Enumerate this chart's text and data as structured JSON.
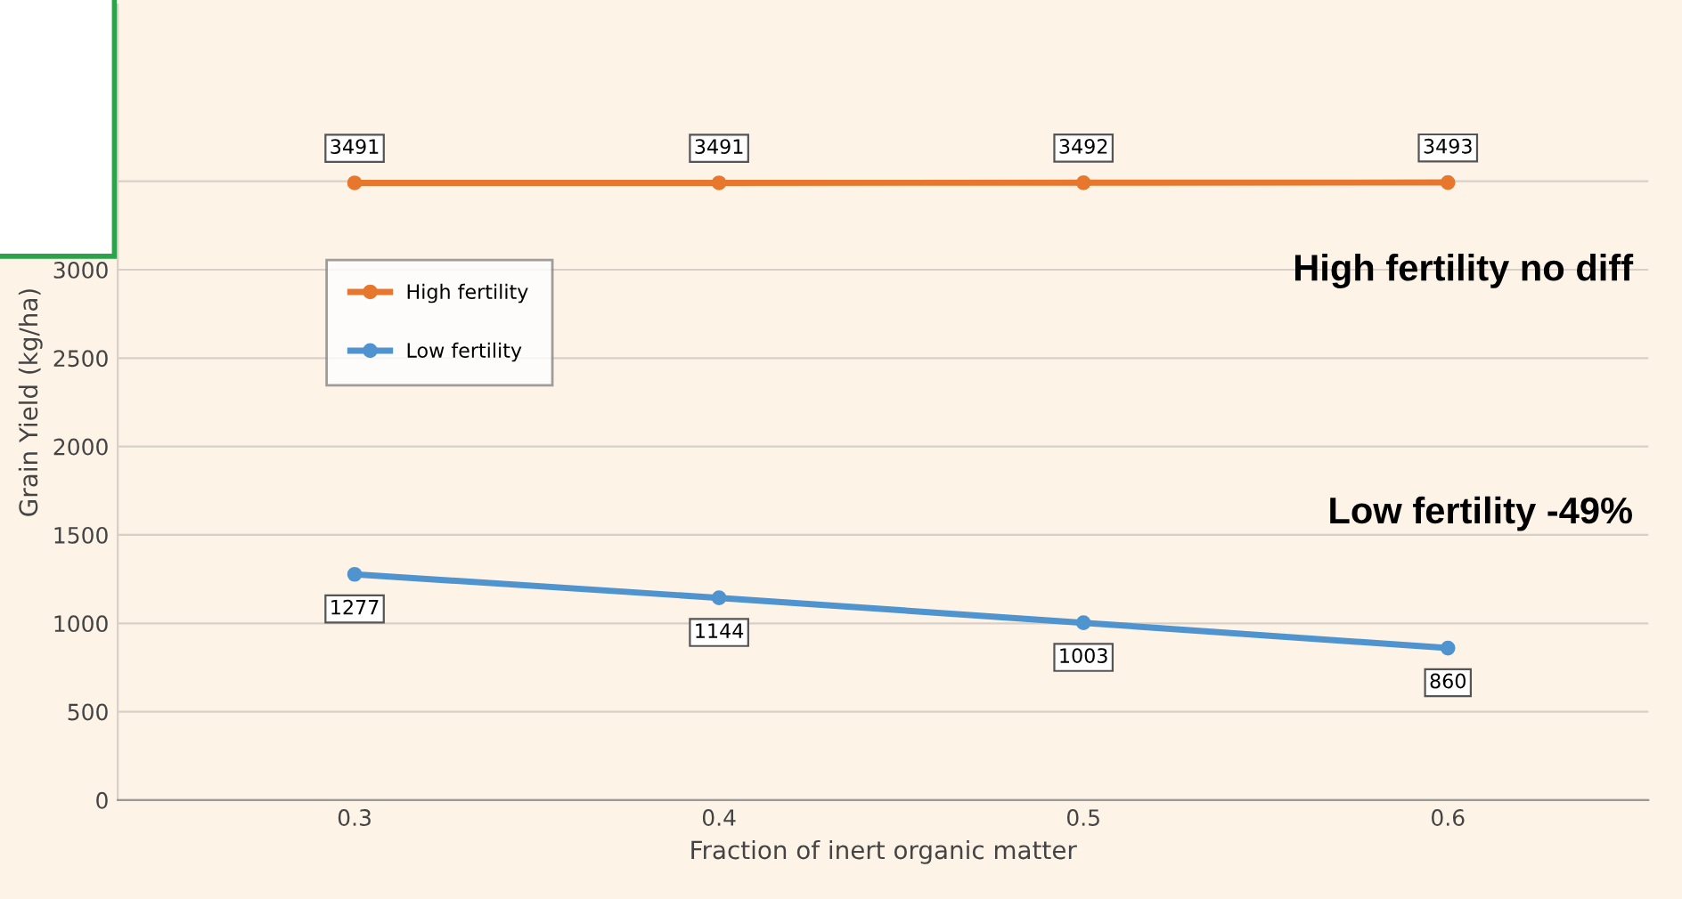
{
  "chart_data": {
    "type": "line",
    "xlabel": "Fraction of inert organic matter",
    "ylabel": "Grain Yield (kg/ha)",
    "categories": [
      "0.3",
      "0.4",
      "0.5",
      "0.6"
    ],
    "series": [
      {
        "name": "High fertility",
        "color": "#e8772e",
        "values": [
          3491,
          3491,
          3492,
          3493
        ]
      },
      {
        "name": "Low fertility",
        "color": "#4f93cf",
        "values": [
          1277,
          1144,
          1003,
          860
        ]
      }
    ],
    "ylim": [
      0,
      4500
    ],
    "yticks": [
      0,
      500,
      1000,
      1500,
      2000,
      2500,
      3000,
      {
        "value": 3500,
        "label": null
      }
    ],
    "grid": "y",
    "legend": "left",
    "marker": "circle",
    "line_style": "solid",
    "data_labels": true,
    "annotations": [
      "High fertility no diff",
      "Low fertility -49%"
    ]
  }
}
